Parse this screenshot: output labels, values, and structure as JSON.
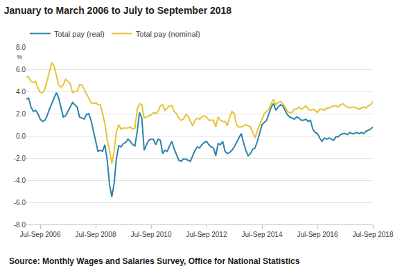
{
  "chart_data": {
    "type": "line",
    "title": "January to March 2006 to July to September 2018",
    "y_label": "%",
    "source": "Source: Monthly Wages and Salaries Survey, Office for National Statistics",
    "categories": [
      null,
      null,
      null,
      null,
      null,
      null,
      "Jul-Sep 2006",
      null,
      null,
      null,
      null,
      null,
      null,
      null,
      null,
      null,
      null,
      null,
      null,
      null,
      null,
      null,
      null,
      null,
      null,
      null,
      null,
      null,
      null,
      null,
      "Jul-Sep 2008",
      null,
      null,
      null,
      null,
      null,
      null,
      null,
      null,
      null,
      null,
      null,
      null,
      null,
      null,
      null,
      null,
      null,
      null,
      null,
      null,
      null,
      null,
      null,
      "Jul-Sep 2010",
      null,
      null,
      null,
      null,
      null,
      null,
      null,
      null,
      null,
      null,
      null,
      null,
      null,
      null,
      null,
      null,
      null,
      null,
      null,
      null,
      null,
      null,
      null,
      "Jul-Sep 2012",
      null,
      null,
      null,
      null,
      null,
      null,
      null,
      null,
      null,
      null,
      null,
      null,
      null,
      null,
      null,
      null,
      null,
      null,
      null,
      null,
      null,
      null,
      null,
      "Jul-Sep 2014",
      null,
      null,
      null,
      null,
      null,
      null,
      null,
      null,
      null,
      null,
      null,
      null,
      null,
      null,
      null,
      null,
      null,
      null,
      null,
      null,
      null,
      null,
      null,
      "Jul-Sep 2016",
      null,
      null,
      null,
      null,
      null,
      null,
      null,
      null,
      null,
      null,
      null,
      null,
      null,
      null,
      null,
      null,
      null,
      null,
      null,
      null,
      null,
      null,
      null,
      "Jul-Sep 2018"
    ],
    "series": [
      {
        "name": "Total pay (real)",
        "color": "#2b83a8",
        "values": [
          3.3,
          3.4,
          2.6,
          2.2,
          2.3,
          2.0,
          1.5,
          1.3,
          1.4,
          1.8,
          2.4,
          2.9,
          3.5,
          3.9,
          3.4,
          2.6,
          1.7,
          1.8,
          2.2,
          2.6,
          3.0,
          2.8,
          2.6,
          1.7,
          1.6,
          1.5,
          1.9,
          2.0,
          1.4,
          0.5,
          -0.3,
          -1.4,
          -1.3,
          -1.4,
          -0.8,
          -2.2,
          -4.4,
          -5.5,
          -4.3,
          -2.0,
          -0.9,
          -1.0,
          -0.7,
          -0.6,
          -0.3,
          -0.5,
          -0.8,
          -0.9,
          0.4,
          2.1,
          1.6,
          -1.3,
          -0.8,
          -0.4,
          -0.3,
          -0.3,
          -0.8,
          -0.3,
          -0.4,
          -1.6,
          -1.3,
          -1.4,
          -0.9,
          -0.5,
          -1.2,
          -1.7,
          -2.2,
          -2.3,
          -2.1,
          -2.1,
          -2.2,
          -2.3,
          -1.8,
          -1.3,
          -1.0,
          -1.1,
          -0.8,
          -0.6,
          -0.5,
          -0.8,
          -1.0,
          -1.1,
          -1.8,
          -0.7,
          -0.8,
          -0.5,
          -1.4,
          -1.6,
          -1.5,
          -1.3,
          -1.0,
          -0.6,
          -0.1,
          0.2,
          -0.6,
          -1.3,
          -1.8,
          -1.6,
          -1.2,
          -1.1,
          -0.5,
          0.2,
          1.0,
          1.2,
          1.4,
          2.0,
          2.6,
          2.9,
          2.3,
          2.6,
          2.8,
          2.7,
          2.3,
          1.9,
          1.7,
          1.6,
          1.5,
          1.7,
          1.6,
          1.4,
          1.4,
          1.5,
          1.3,
          1.4,
          0.6,
          0.3,
          0.2,
          -0.2,
          -0.5,
          -0.2,
          -0.3,
          -0.2,
          -0.3,
          -0.4,
          -0.1,
          -0.1,
          0.1,
          0.2,
          0.2,
          0.1,
          0.3,
          0.2,
          0.2,
          0.3,
          0.2,
          0.3,
          0.2,
          0.4,
          0.5,
          0.6,
          0.8
        ]
      },
      {
        "name": "Total pay (nominal)",
        "color": "#e8c233",
        "values": [
          5.3,
          5.3,
          4.9,
          4.8,
          4.9,
          4.3,
          3.9,
          3.9,
          4.2,
          5.0,
          5.7,
          6.6,
          6.3,
          5.5,
          4.6,
          4.4,
          4.6,
          5.1,
          4.9,
          4.7,
          3.9,
          4.0,
          4.0,
          4.6,
          4.6,
          4.2,
          3.7,
          3.3,
          3.0,
          2.9,
          3.0,
          2.8,
          2.8,
          2.0,
          1.1,
          -0.4,
          -1.3,
          -2.5,
          -1.4,
          0.4,
          1.0,
          0.6,
          0.7,
          0.7,
          0.7,
          0.8,
          0.6,
          0.7,
          2.4,
          2.9,
          2.8,
          1.6,
          1.7,
          1.8,
          1.9,
          2.1,
          2.0,
          2.2,
          2.7,
          2.8,
          2.3,
          2.5,
          2.7,
          2.7,
          2.2,
          2.0,
          1.6,
          1.4,
          1.5,
          1.9,
          1.8,
          1.3,
          0.9,
          1.4,
          1.6,
          1.5,
          1.7,
          1.8,
          1.7,
          1.4,
          1.4,
          1.4,
          0.8,
          1.7,
          1.4,
          1.3,
          1.3,
          0.9,
          1.7,
          2.2,
          2.0,
          1.0,
          0.8,
          0.8,
          0.9,
          1.0,
          0.9,
          0.8,
          0.3,
          -0.2,
          0.5,
          1.0,
          1.6,
          2.0,
          2.2,
          2.4,
          2.9,
          3.3,
          2.8,
          3.0,
          3.1,
          2.9,
          2.6,
          2.2,
          2.1,
          2.1,
          2.4,
          2.4,
          2.6,
          2.4,
          2.5,
          2.7,
          2.4,
          2.3,
          2.4,
          2.3,
          2.1,
          2.4,
          2.4,
          2.3,
          2.5,
          2.5,
          2.6,
          2.7,
          2.7,
          2.6,
          2.8,
          2.9,
          2.7,
          2.6,
          2.5,
          2.6,
          2.6,
          2.5,
          2.4,
          2.5,
          2.6,
          2.5,
          2.7,
          2.8,
          3.1
        ]
      }
    ],
    "ylim": [
      -8,
      8
    ],
    "yticks": [
      {
        "value": -8,
        "label": "-8.0"
      },
      {
        "value": -6,
        "label": "-6.0"
      },
      {
        "value": -4,
        "label": "-4.0"
      },
      {
        "value": -2,
        "label": "-2.0"
      },
      {
        "value": 0,
        "label": "0.0"
      },
      {
        "value": 2,
        "label": "2.0"
      },
      {
        "value": 4,
        "label": "4.0"
      },
      {
        "value": 6,
        "label": "6.0"
      },
      {
        "value": 8,
        "label": "8.0"
      }
    ],
    "grid": true,
    "legend": "top-left"
  }
}
